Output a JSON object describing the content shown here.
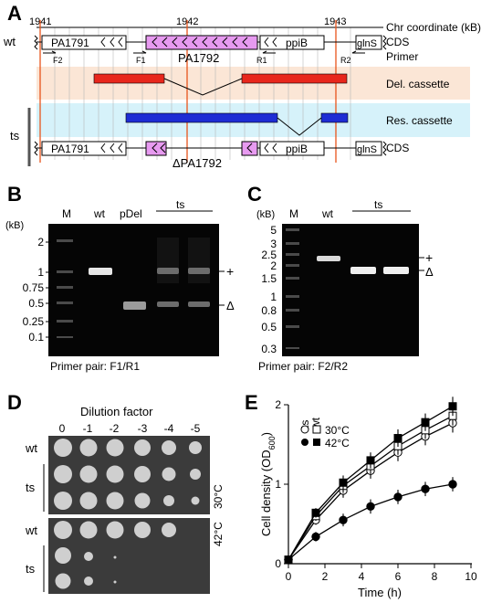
{
  "panel_a": {
    "label": "A",
    "coords": [
      "1941",
      "1942",
      "1943"
    ],
    "coord_label": "Chr coordinate (kB)",
    "row_labels": {
      "wt": "wt",
      "ts": "ts"
    },
    "track_labels": {
      "cds_top": "CDS",
      "primer": "Primer",
      "del": "Del. cassette",
      "res": "Res. cassette",
      "cds_bottom": "CDS"
    },
    "genes": {
      "pa1791": "PA1791",
      "pa1792": "PA1792",
      "ppib": "ppiB",
      "glns": "glnS",
      "delta_pa1792": "ΔPA1792"
    },
    "primers": {
      "f2": "F2",
      "f1": "F1",
      "r1": "R1",
      "r2": "R2"
    },
    "colors": {
      "del": "#e8261c",
      "res": "#1e2cd4",
      "gene_pink": "#e79af0",
      "del_band": "#fbe6d6",
      "res_band": "#d6f2fa",
      "coord_line": "#e8541c"
    }
  },
  "panel_b": {
    "label": "B",
    "lanes": [
      "M",
      "wt",
      "pDel",
      "ts"
    ],
    "unit": "(kB)",
    "ladder": [
      "2",
      "1",
      "0.75",
      "0.5",
      "0.25",
      "0.1"
    ],
    "plus": "+",
    "delta": "Δ",
    "caption": "Primer pair: F1/R1"
  },
  "panel_c": {
    "label": "C",
    "unit": "(kB)",
    "lanes": [
      "M",
      "wt",
      "ts"
    ],
    "ladder": [
      "5",
      "3",
      "2.5",
      "2",
      "1.5",
      "1",
      "0.8",
      "0.5",
      "0.3"
    ],
    "plus": "+",
    "delta": "Δ",
    "caption": "Primer pair: F2/R2"
  },
  "panel_d": {
    "label": "D",
    "title": "Dilution factor",
    "dilutions": [
      "0",
      "-1",
      "-2",
      "-3",
      "-4",
      "-5"
    ],
    "row_labels": [
      "wt",
      "ts",
      "wt",
      "ts"
    ],
    "temps": [
      "30°C",
      "42°C"
    ]
  },
  "panel_e": {
    "label": "E",
    "legend_header": [
      "ts",
      "wt"
    ],
    "legend_rows": [
      "30°C",
      "42°C"
    ]
  },
  "chart_data": {
    "type": "line",
    "xlabel": "Time (h)",
    "ylabel": "Cell density (OD600)",
    "xlim": [
      0,
      10
    ],
    "ylim": [
      0,
      2
    ],
    "xticks": [
      0,
      2,
      4,
      6,
      8,
      10
    ],
    "yticks": [
      0,
      1,
      2
    ],
    "x": [
      0,
      1.5,
      3,
      4.5,
      6,
      7.5,
      9
    ],
    "series": [
      {
        "name": "ts 30°C",
        "marker": "open-circle",
        "values": [
          0.05,
          0.55,
          0.92,
          1.17,
          1.4,
          1.6,
          1.77
        ],
        "err": [
          0.03,
          0.06,
          0.09,
          0.1,
          0.11,
          0.11,
          0.12
        ]
      },
      {
        "name": "wt 30°C",
        "marker": "open-square",
        "values": [
          0.05,
          0.6,
          0.98,
          1.23,
          1.48,
          1.68,
          1.86
        ],
        "err": [
          0.03,
          0.06,
          0.09,
          0.1,
          0.11,
          0.11,
          0.12
        ]
      },
      {
        "name": "wt 42°C",
        "marker": "filled-square",
        "values": [
          0.05,
          0.64,
          1.02,
          1.3,
          1.58,
          1.78,
          1.98
        ],
        "err": [
          0.03,
          0.06,
          0.09,
          0.1,
          0.11,
          0.11,
          0.12
        ]
      },
      {
        "name": "ts 42°C",
        "marker": "filled-circle",
        "values": [
          0.05,
          0.34,
          0.55,
          0.72,
          0.84,
          0.94,
          1.0
        ],
        "err": [
          0.03,
          0.06,
          0.08,
          0.09,
          0.09,
          0.09,
          0.09
        ]
      }
    ]
  }
}
